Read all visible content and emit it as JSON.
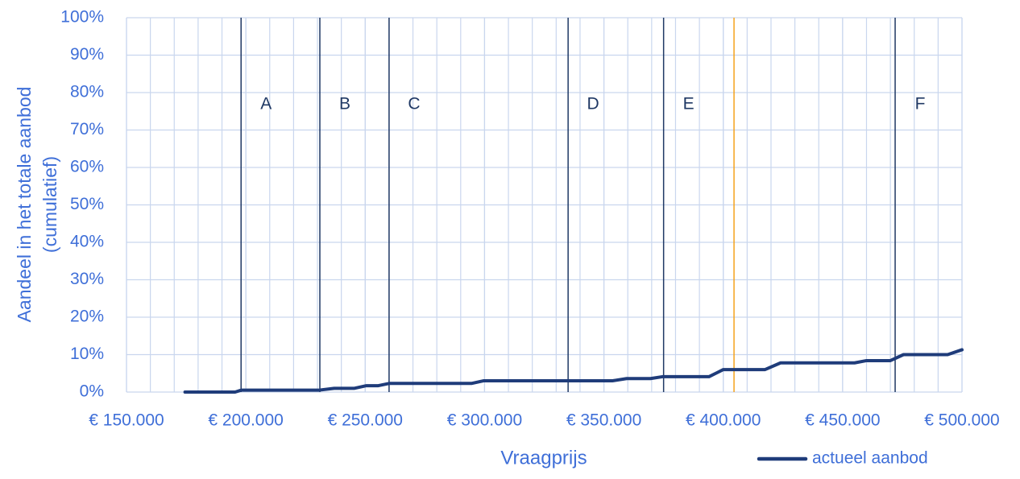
{
  "chart_data": {
    "type": "line",
    "x_title": "Vraagprijs",
    "y_title": [
      "Aandeel in het totale aanbod",
      "(cumulatief)"
    ],
    "xlim": [
      150000,
      500000
    ],
    "ylim": [
      0,
      100
    ],
    "xticks": [
      {
        "value": 150000,
        "label": "€ 150.000"
      },
      {
        "value": 200000,
        "label": "€ 200.000"
      },
      {
        "value": 250000,
        "label": "€ 250.000"
      },
      {
        "value": 300000,
        "label": "€ 300.000"
      },
      {
        "value": 350000,
        "label": "€ 350.000"
      },
      {
        "value": 400000,
        "label": "€ 400.000"
      },
      {
        "value": 450000,
        "label": "€ 450.000"
      },
      {
        "value": 500000,
        "label": "€ 500.000"
      }
    ],
    "x_grid_step": 10000,
    "yticks": [
      {
        "value": 0,
        "label": "0%"
      },
      {
        "value": 10,
        "label": "10%"
      },
      {
        "value": 20,
        "label": "20%"
      },
      {
        "value": 30,
        "label": "30%"
      },
      {
        "value": 40,
        "label": "40%"
      },
      {
        "value": 50,
        "label": "50%"
      },
      {
        "value": 60,
        "label": "60%"
      },
      {
        "value": 70,
        "label": "70%"
      },
      {
        "value": 80,
        "label": "80%"
      },
      {
        "value": 90,
        "label": "90%"
      },
      {
        "value": 100,
        "label": "100%"
      }
    ],
    "grid": true,
    "legend": "bottom-right",
    "vlines": [
      {
        "x": 198000,
        "label": "A",
        "color": "#1f3864"
      },
      {
        "x": 231000,
        "label": "B",
        "color": "#1f3864"
      },
      {
        "x": 260000,
        "label": "C",
        "color": "#1f3864"
      },
      {
        "x": 335000,
        "label": "D",
        "color": "#1f3864"
      },
      {
        "x": 375000,
        "label": "E",
        "color": "#1f3864"
      },
      {
        "x": 404500,
        "color": "#f4a21c"
      },
      {
        "x": 472000,
        "label": "F",
        "color": "#1f3864"
      }
    ],
    "series": [
      {
        "name": "actueel aanbod",
        "color": "#1f3c7a",
        "x": [
          174500,
          195500,
          198000,
          230500,
          237000,
          245500,
          250500,
          255500,
          260000,
          294500,
          299500,
          353500,
          359500,
          369500,
          374500,
          394000,
          400000,
          417500,
          424000,
          455000,
          460000,
          470000,
          475500,
          494000,
          500000
        ],
        "values": [
          0,
          0,
          0.5,
          0.5,
          1,
          1,
          1.7,
          1.7,
          2.3,
          2.3,
          3,
          3,
          3.6,
          3.6,
          4.1,
          4.1,
          6,
          6,
          7.8,
          7.8,
          8.4,
          8.4,
          10,
          10,
          11.3
        ]
      }
    ]
  }
}
